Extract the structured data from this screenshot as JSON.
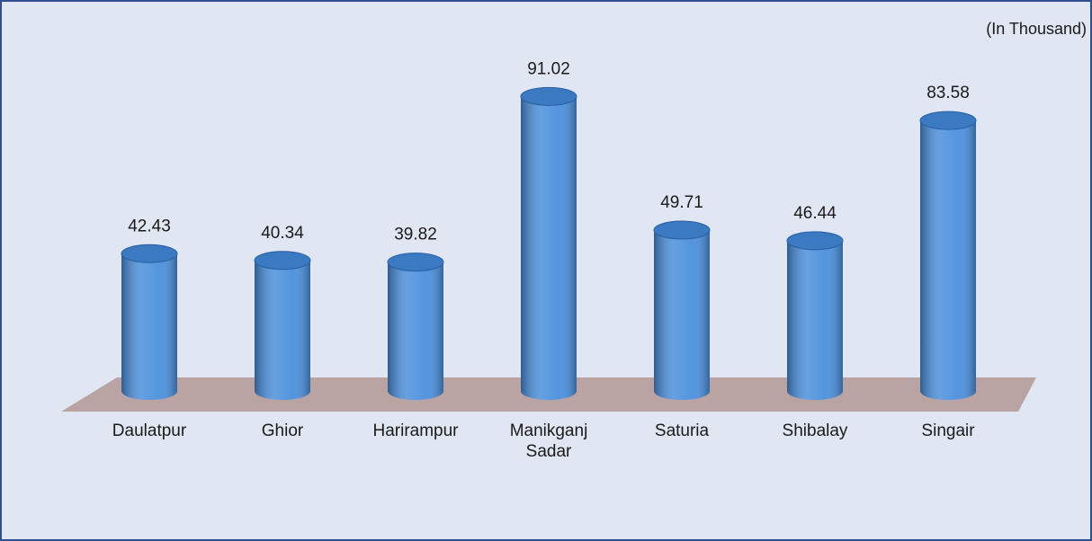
{
  "chart_data": {
    "type": "cylinder-bar",
    "annotation": "(In Thousand)",
    "categories": [
      "Daulatpur",
      "Ghior",
      "Harirampur",
      "Manikganj Sadar",
      "Saturia",
      "Shibalay",
      "Singair"
    ],
    "values": [
      42.43,
      40.34,
      39.82,
      91.02,
      49.71,
      46.44,
      83.58
    ],
    "color": "#4a8fdc",
    "floor_color": "#b9a3a3"
  }
}
